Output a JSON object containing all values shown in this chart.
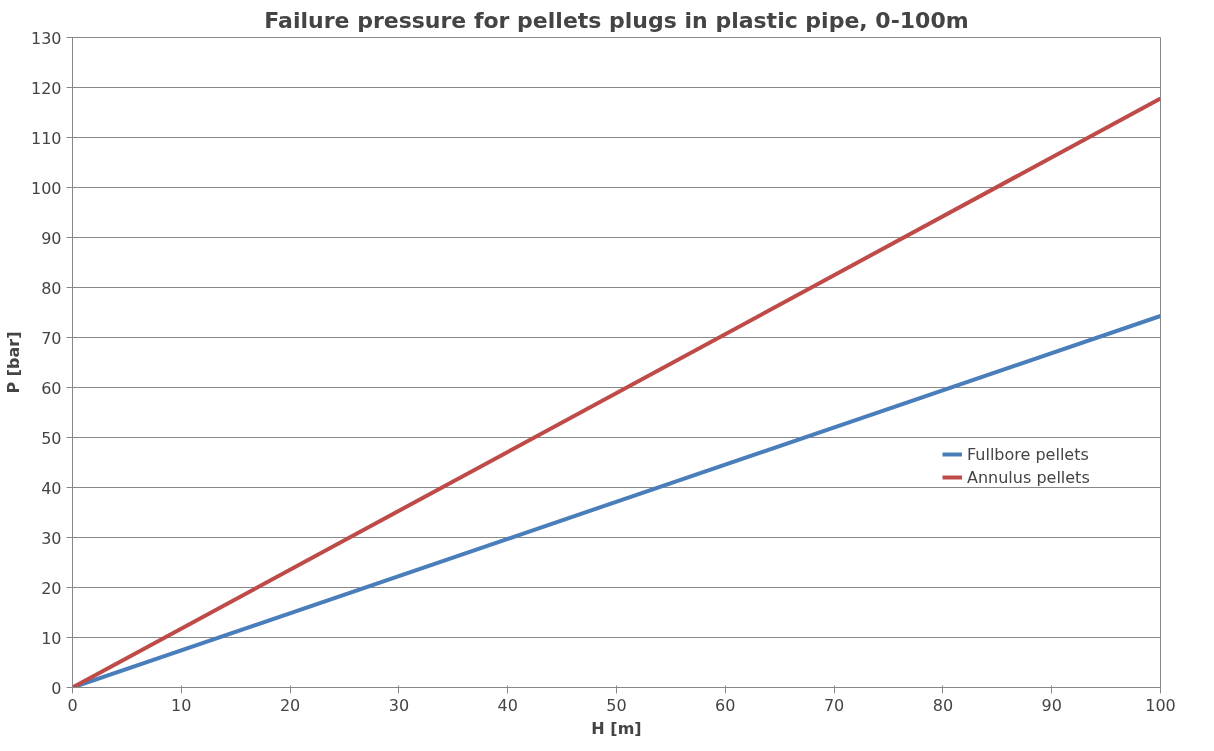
{
  "chart_data": {
    "type": "line",
    "title": "Failure pressure for pellets plugs in plastic pipe, 0-100m",
    "xlabel": "H [m]",
    "ylabel": "P [bar]",
    "x": [
      0,
      100
    ],
    "series": [
      {
        "name": "Fullbore pellets",
        "color": "#4a7ebb",
        "values": [
          0,
          74.3
        ]
      },
      {
        "name": "Annulus pellets",
        "color": "#be4b48",
        "values": [
          0,
          117.8
        ]
      }
    ],
    "xlim": [
      0,
      100
    ],
    "xticks": [
      0,
      10,
      20,
      30,
      40,
      50,
      60,
      70,
      80,
      90,
      100
    ],
    "ylim": [
      0,
      130
    ],
    "yticks": [
      0,
      10,
      20,
      30,
      40,
      50,
      60,
      70,
      80,
      90,
      100,
      110,
      120,
      130
    ],
    "grid": "y",
    "legend": "right",
    "marker": "none",
    "line_style": "solid"
  }
}
